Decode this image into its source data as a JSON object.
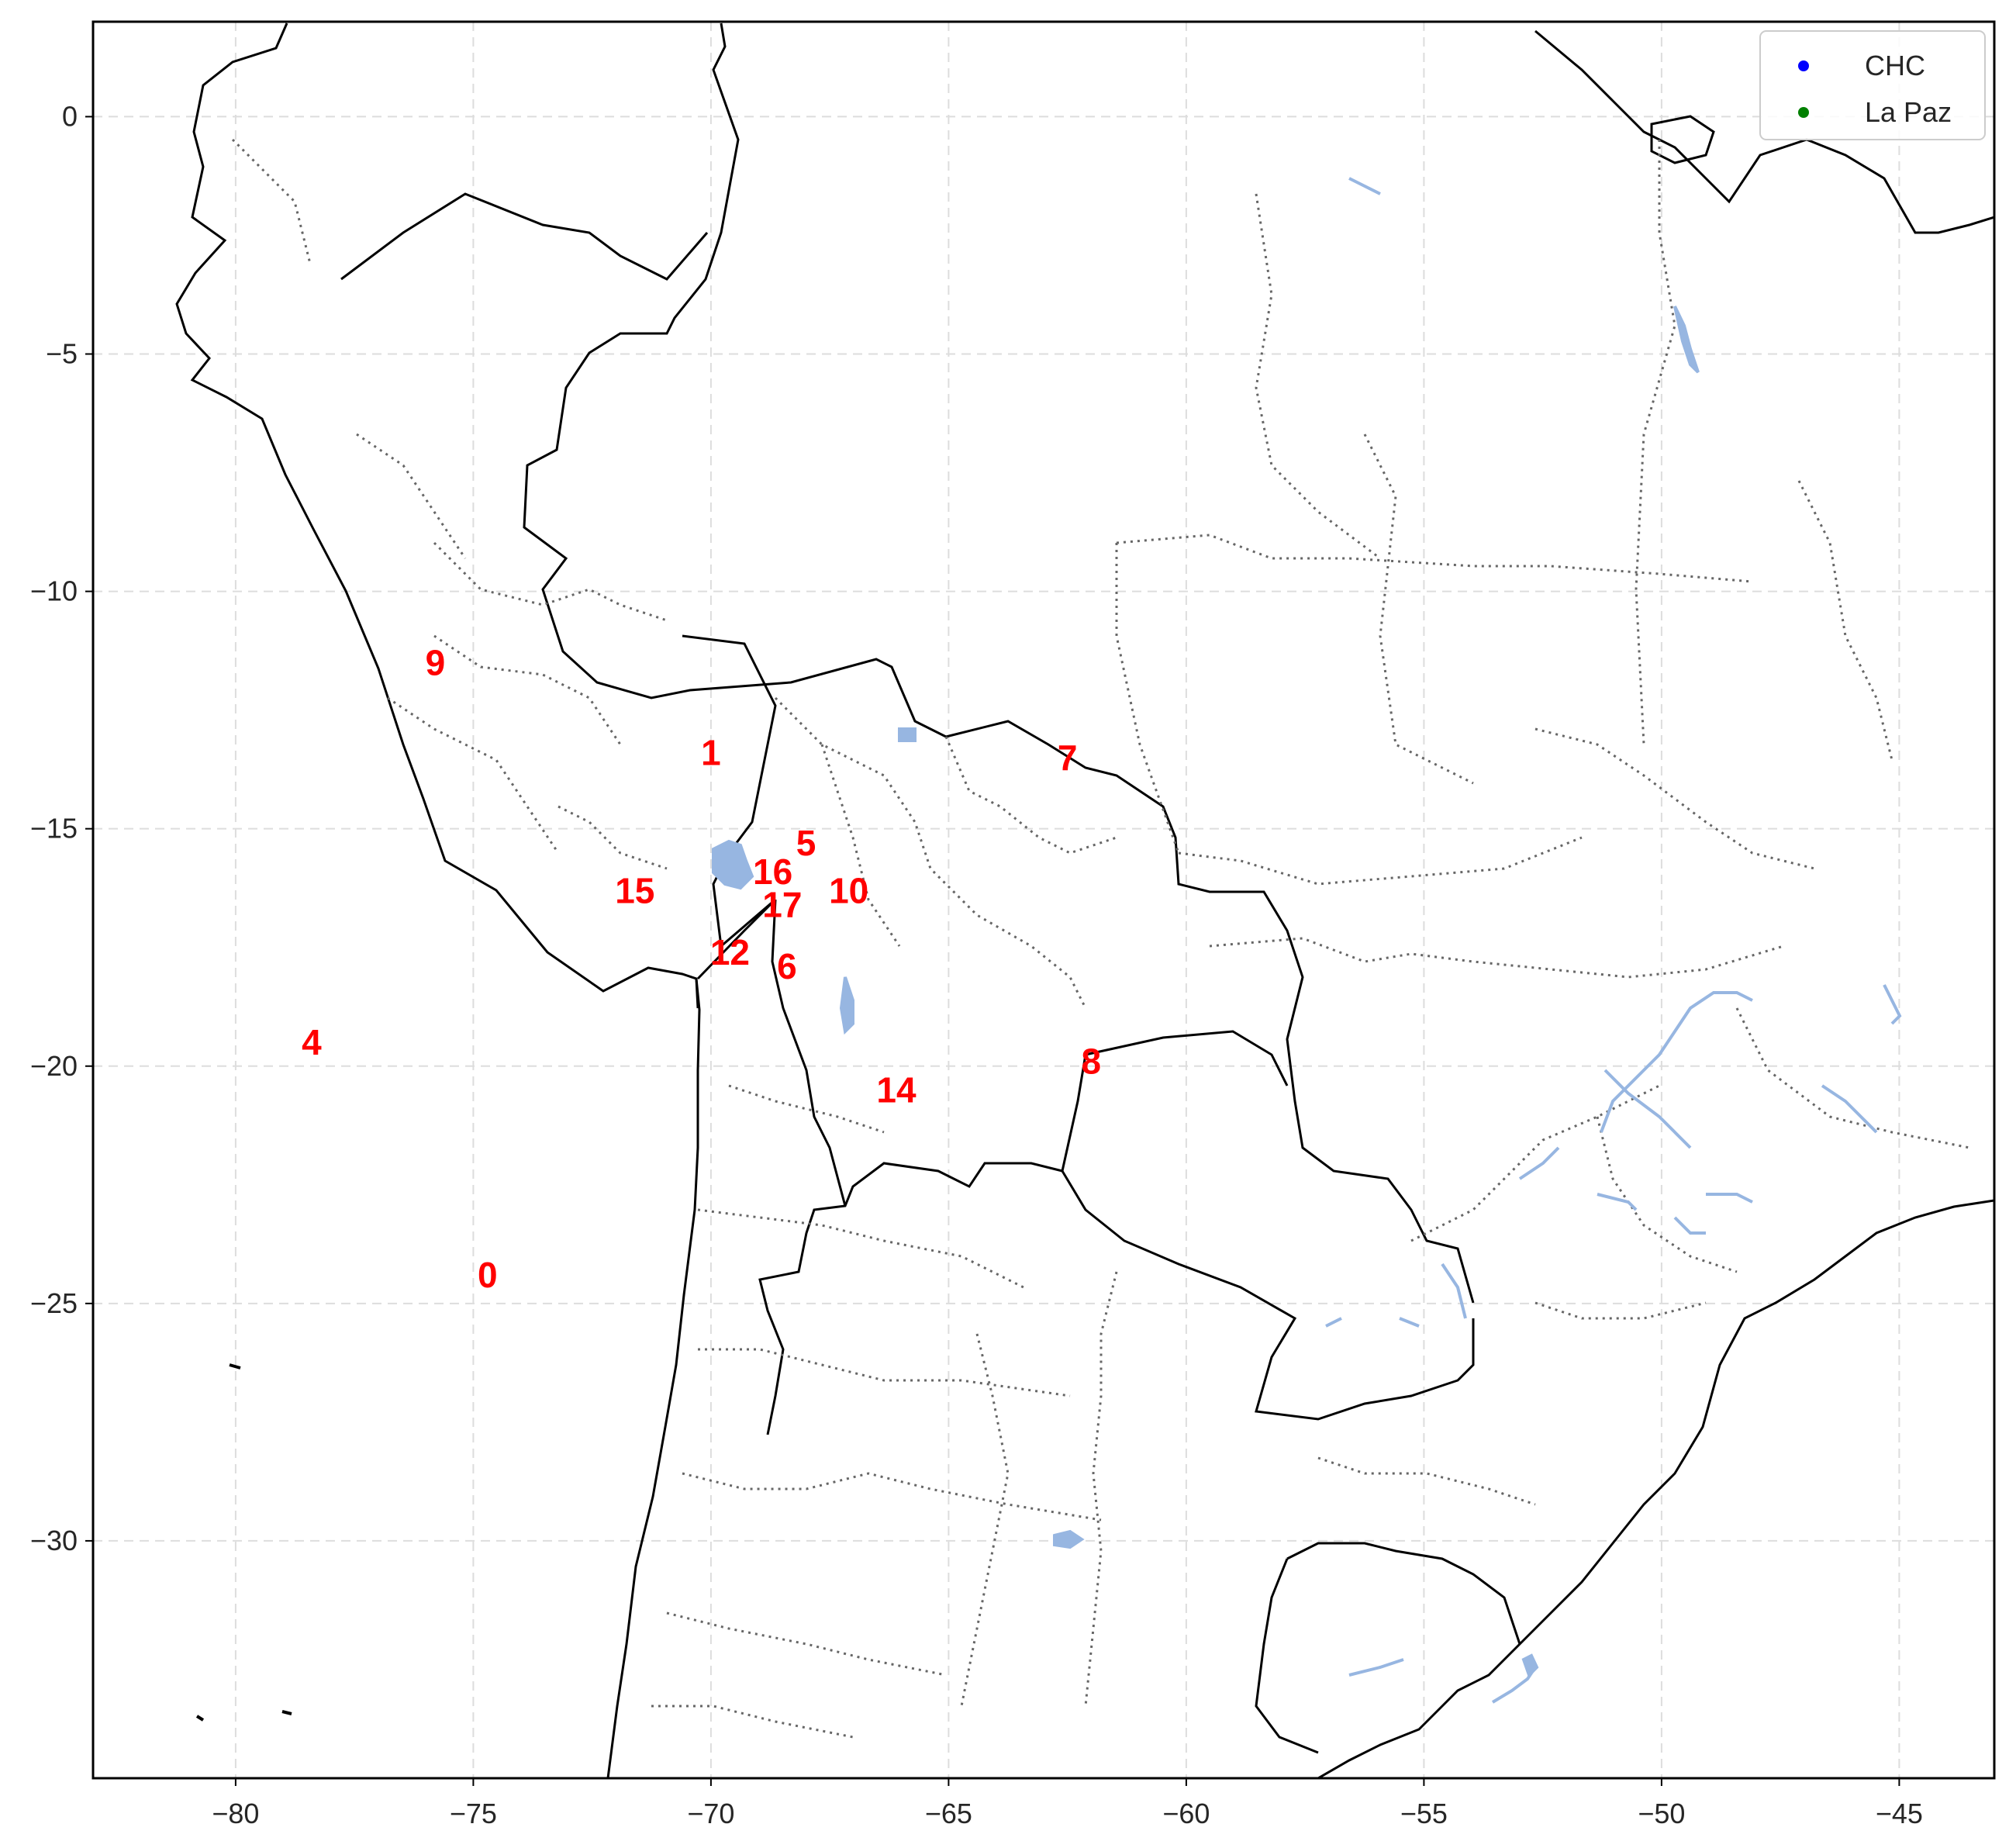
{
  "map": {
    "xlim": [
      -83,
      -43
    ],
    "ylim": [
      -35,
      2
    ],
    "xticks": [
      -80,
      -75,
      -70,
      -65,
      -60,
      -55,
      -50,
      -45
    ],
    "yticks": [
      0,
      -5,
      -10,
      -15,
      -20,
      -25,
      -30
    ],
    "xtick_labels": [
      "−80",
      "−75",
      "−70",
      "−65",
      "−60",
      "−55",
      "−50",
      "−45"
    ],
    "ytick_labels": [
      "0",
      "−5",
      "−10",
      "−15",
      "−20",
      "−25",
      "−30"
    ],
    "grid": true,
    "colors": {
      "coastline": "#000000",
      "border": "#666666",
      "water": "#97b6e1",
      "label": "#ff0000",
      "grid": "#dddddd"
    }
  },
  "legend": {
    "placement": "top-right",
    "items": [
      {
        "label": "CHC",
        "color": "#0000ff"
      },
      {
        "label": "La Paz",
        "color": "#008000"
      }
    ]
  },
  "chart_data": {
    "type": "scatter",
    "xlabel": "",
    "ylabel": "",
    "points": [
      {
        "label": "0",
        "lon": -74.7,
        "lat": -24.4
      },
      {
        "label": "1",
        "lon": -70.0,
        "lat": -13.4
      },
      {
        "label": "4",
        "lon": -78.4,
        "lat": -19.5
      },
      {
        "label": "5",
        "lon": -68.0,
        "lat": -15.3
      },
      {
        "label": "6",
        "lon": -68.4,
        "lat": -17.9
      },
      {
        "label": "7",
        "lon": -62.5,
        "lat": -13.5
      },
      {
        "label": "8",
        "lon": -62.0,
        "lat": -19.9
      },
      {
        "label": "9",
        "lon": -75.8,
        "lat": -11.5
      },
      {
        "label": "10",
        "lon": -67.1,
        "lat": -16.3
      },
      {
        "label": "12",
        "lon": -69.6,
        "lat": -17.6
      },
      {
        "label": "14",
        "lon": -66.1,
        "lat": -20.5
      },
      {
        "label": "15",
        "lon": -71.6,
        "lat": -16.3
      },
      {
        "label": "16",
        "lon": -68.7,
        "lat": -15.9
      },
      {
        "label": "17",
        "lon": -68.5,
        "lat": -16.6
      }
    ]
  }
}
